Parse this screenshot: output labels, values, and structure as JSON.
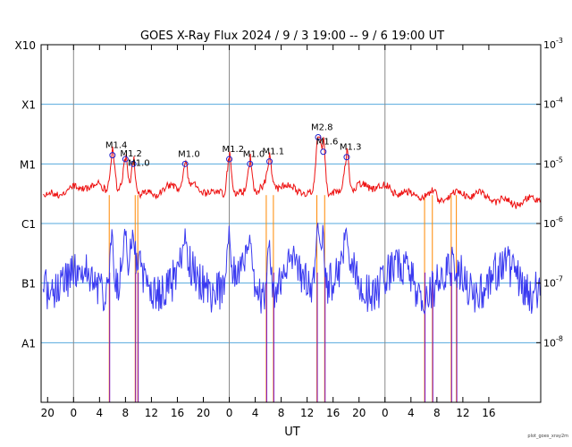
{
  "chart_data": {
    "type": "line",
    "title": "GOES X-Ray Flux   2024 /  9 /  3   19:00 --  9 /  6   19:00   UT",
    "xlabel": "UT",
    "footer": "plot_goes_xray2m",
    "y_scale": "log",
    "ylim": [
      1e-09,
      0.001
    ],
    "y_left_labels": [
      {
        "label": "X10",
        "value": 0.001
      },
      {
        "label": "X1",
        "value": 0.0001
      },
      {
        "label": "M1",
        "value": 1e-05
      },
      {
        "label": "C1",
        "value": 1e-06
      },
      {
        "label": "B1",
        "value": 1e-07
      },
      {
        "label": "A1",
        "value": 1e-08
      }
    ],
    "y_right_labels": [
      {
        "mantissa": "10",
        "exp": "-3",
        "value": 0.001
      },
      {
        "mantissa": "10",
        "exp": "-4",
        "value": 0.0001
      },
      {
        "mantissa": "10",
        "exp": "-5",
        "value": 1e-05
      },
      {
        "mantissa": "10",
        "exp": "-6",
        "value": 1e-06
      },
      {
        "mantissa": "10",
        "exp": "-7",
        "value": 1e-07
      },
      {
        "mantissa": "10",
        "exp": "-8",
        "value": 1e-08
      }
    ],
    "xlim_hours": [
      -4,
      73
    ],
    "x_ticks": [
      {
        "label": "20",
        "h": -3
      },
      {
        "label": "0",
        "h": 1
      },
      {
        "label": "4",
        "h": 5
      },
      {
        "label": "8",
        "h": 9
      },
      {
        "label": "12",
        "h": 13
      },
      {
        "label": "16",
        "h": 17
      },
      {
        "label": "20",
        "h": 21
      },
      {
        "label": "0",
        "h": 25
      },
      {
        "label": "4",
        "h": 29
      },
      {
        "label": "8",
        "h": 33
      },
      {
        "label": "12",
        "h": 37
      },
      {
        "label": "16",
        "h": 41
      },
      {
        "label": "20",
        "h": 45
      },
      {
        "label": "0",
        "h": 49
      },
      {
        "label": "4",
        "h": 53
      },
      {
        "label": "8",
        "h": 57
      },
      {
        "label": "12",
        "h": 61
      },
      {
        "label": "16",
        "h": 65
      }
    ],
    "day_boundaries_h": [
      1,
      25,
      49
    ],
    "flares": [
      {
        "label": "M1.4",
        "h": 7.0,
        "value": 1.4e-05
      },
      {
        "label": "M1.2",
        "h": 9.0,
        "value": 1.2e-05
      },
      {
        "label": "M1.0",
        "h": 10.2,
        "value": 1e-05
      },
      {
        "label": "M1.0",
        "h": 18.2,
        "value": 1e-05
      },
      {
        "label": "M1.2",
        "h": 25.0,
        "value": 1.2e-05
      },
      {
        "label": "M1.0",
        "h": 28.2,
        "value": 1e-05
      },
      {
        "label": "M1.1",
        "h": 31.2,
        "value": 1.1e-05
      },
      {
        "label": "M2.8",
        "h": 38.7,
        "value": 2.8e-05
      },
      {
        "label": "M1.6",
        "h": 39.5,
        "value": 1.6e-05
      },
      {
        "label": "M1.3",
        "h": 43.1,
        "value": 1.3e-05
      }
    ],
    "series": [
      {
        "id": "long",
        "color": "#ee1111",
        "dropout_color": "#ff8800"
      },
      {
        "id": "short",
        "color": "#3a3af0",
        "dropout_color": "#7a10c8"
      }
    ],
    "colors": {
      "grid": "#55aadd",
      "day_line": "#888888",
      "marker": "#2222cc"
    }
  }
}
